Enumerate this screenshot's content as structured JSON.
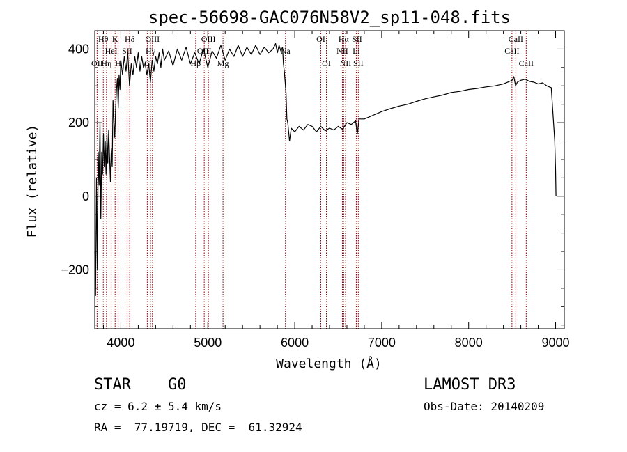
{
  "chart_data": {
    "type": "line",
    "title": "spec-56698-GAC076N58V2_sp11-048.fits",
    "xlabel": "Wavelength (Å)",
    "ylabel": "Flux (relative)",
    "xlim": [
      3700,
      9100
    ],
    "ylim": [
      -360,
      450
    ],
    "x_ticks": [
      4000,
      5000,
      6000,
      7000,
      8000,
      9000
    ],
    "x_tick_labels": [
      "4000",
      "5000",
      "6000",
      "7000",
      "8000",
      "9000"
    ],
    "y_ticks": [
      -200,
      0,
      200,
      400
    ],
    "y_tick_labels": [
      "−200",
      "0",
      "200",
      "400"
    ],
    "grid": false,
    "series": [
      {
        "line_color": "#000000",
        "points": [
          [
            3700,
            -150
          ],
          [
            3710,
            -270
          ],
          [
            3720,
            50
          ],
          [
            3730,
            -200
          ],
          [
            3740,
            120
          ],
          [
            3750,
            30
          ],
          [
            3760,
            200
          ],
          [
            3770,
            -60
          ],
          [
            3780,
            120
          ],
          [
            3790,
            60
          ],
          [
            3800,
            170
          ],
          [
            3810,
            80
          ],
          [
            3820,
            150
          ],
          [
            3830,
            60
          ],
          [
            3840,
            170
          ],
          [
            3850,
            90
          ],
          [
            3860,
            180
          ],
          [
            3870,
            110
          ],
          [
            3880,
            40
          ],
          [
            3890,
            130
          ],
          [
            3900,
            80
          ],
          [
            3910,
            260
          ],
          [
            3920,
            200
          ],
          [
            3930,
            160
          ],
          [
            3940,
            240
          ],
          [
            3950,
            290
          ],
          [
            3960,
            320
          ],
          [
            3970,
            240
          ],
          [
            3980,
            330
          ],
          [
            3990,
            290
          ],
          [
            4000,
            370
          ],
          [
            4020,
            330
          ],
          [
            4040,
            380
          ],
          [
            4060,
            340
          ],
          [
            4080,
            390
          ],
          [
            4100,
            300
          ],
          [
            4120,
            360
          ],
          [
            4140,
            330
          ],
          [
            4160,
            380
          ],
          [
            4180,
            350
          ],
          [
            4200,
            390
          ],
          [
            4220,
            340
          ],
          [
            4240,
            380
          ],
          [
            4260,
            350
          ],
          [
            4280,
            360
          ],
          [
            4300,
            330
          ],
          [
            4320,
            360
          ],
          [
            4340,
            310
          ],
          [
            4360,
            370
          ],
          [
            4380,
            340
          ],
          [
            4400,
            380
          ],
          [
            4420,
            360
          ],
          [
            4440,
            390
          ],
          [
            4460,
            350
          ],
          [
            4480,
            400
          ],
          [
            4500,
            370
          ],
          [
            4550,
            395
          ],
          [
            4600,
            355
          ],
          [
            4650,
            400
          ],
          [
            4700,
            370
          ],
          [
            4750,
            405
          ],
          [
            4800,
            360
          ],
          [
            4850,
            390
          ],
          [
            4900,
            360
          ],
          [
            4950,
            400
          ],
          [
            5000,
            350
          ],
          [
            5050,
            395
          ],
          [
            5100,
            375
          ],
          [
            5150,
            410
          ],
          [
            5200,
            370
          ],
          [
            5250,
            400
          ],
          [
            5300,
            380
          ],
          [
            5350,
            410
          ],
          [
            5400,
            380
          ],
          [
            5450,
            405
          ],
          [
            5500,
            385
          ],
          [
            5550,
            410
          ],
          [
            5600,
            385
          ],
          [
            5650,
            405
          ],
          [
            5700,
            390
          ],
          [
            5750,
            400
          ],
          [
            5780,
            415
          ],
          [
            5800,
            390
          ],
          [
            5820,
            410
          ],
          [
            5840,
            395
          ],
          [
            5860,
            405
          ],
          [
            5870,
            360
          ],
          [
            5880,
            340
          ],
          [
            5900,
            280
          ],
          [
            5910,
            210
          ],
          [
            5920,
            200
          ],
          [
            5940,
            150
          ],
          [
            5960,
            185
          ],
          [
            6000,
            175
          ],
          [
            6050,
            190
          ],
          [
            6100,
            180
          ],
          [
            6150,
            195
          ],
          [
            6200,
            190
          ],
          [
            6250,
            175
          ],
          [
            6300,
            190
          ],
          [
            6350,
            178
          ],
          [
            6400,
            185
          ],
          [
            6450,
            180
          ],
          [
            6500,
            190
          ],
          [
            6550,
            182
          ],
          [
            6600,
            200
          ],
          [
            6650,
            195
          ],
          [
            6700,
            205
          ],
          [
            6720,
            170
          ],
          [
            6740,
            210
          ],
          [
            6800,
            210
          ],
          [
            6850,
            215
          ],
          [
            6900,
            220
          ],
          [
            6950,
            225
          ],
          [
            7000,
            230
          ],
          [
            7100,
            238
          ],
          [
            7200,
            245
          ],
          [
            7300,
            250
          ],
          [
            7400,
            258
          ],
          [
            7500,
            265
          ],
          [
            7600,
            270
          ],
          [
            7700,
            275
          ],
          [
            7800,
            282
          ],
          [
            7900,
            285
          ],
          [
            8000,
            290
          ],
          [
            8100,
            293
          ],
          [
            8200,
            297
          ],
          [
            8300,
            300
          ],
          [
            8400,
            305
          ],
          [
            8500,
            315
          ],
          [
            8520,
            325
          ],
          [
            8540,
            300
          ],
          [
            8560,
            310
          ],
          [
            8600,
            315
          ],
          [
            8650,
            318
          ],
          [
            8700,
            312
          ],
          [
            8750,
            310
          ],
          [
            8800,
            305
          ],
          [
            8850,
            308
          ],
          [
            8900,
            300
          ],
          [
            8950,
            295
          ],
          [
            8990,
            150
          ],
          [
            9000,
            70
          ],
          [
            9005,
            0
          ]
        ]
      }
    ],
    "line_color": "#8b0000",
    "spectral_lines": [
      {
        "label": "Hθ",
        "x": 3798,
        "row": 0
      },
      {
        "label": "OII",
        "x": 3727,
        "row": 2
      },
      {
        "label": "Hη",
        "x": 3835,
        "row": 2
      },
      {
        "label": "HeI",
        "x": 3889,
        "row": 1
      },
      {
        "label": "K",
        "x": 3934,
        "row": 0
      },
      {
        "label": "H",
        "x": 3969,
        "row": 2
      },
      {
        "label": "SII",
        "x": 4072,
        "row": 1
      },
      {
        "label": "Hδ",
        "x": 4102,
        "row": 0
      },
      {
        "label": "OIII",
        "x": 4363,
        "row": 0
      },
      {
        "label": "Hγ",
        "x": 4341,
        "row": 1
      },
      {
        "label": "G",
        "x": 4304,
        "row": 2
      },
      {
        "label": "OIII",
        "x": 5007,
        "row": 0
      },
      {
        "label": "OIII",
        "x": 4959,
        "row": 1
      },
      {
        "label": "Hβ",
        "x": 4861,
        "row": 2
      },
      {
        "label": "Mg",
        "x": 5175,
        "row": 2
      },
      {
        "label": "Na",
        "x": 5893,
        "row": 1
      },
      {
        "label": "OI",
        "x": 6300,
        "row": 0
      },
      {
        "label": "OI",
        "x": 6364,
        "row": 2
      },
      {
        "label": "Hα",
        "x": 6563,
        "row": 0
      },
      {
        "label": "NII",
        "x": 6548,
        "row": 1
      },
      {
        "label": "NII",
        "x": 6584,
        "row": 2
      },
      {
        "label": "SII",
        "x": 6716,
        "row": 0
      },
      {
        "label": "Li",
        "x": 6708,
        "row": 1
      },
      {
        "label": "SII",
        "x": 6731,
        "row": 2
      },
      {
        "label": "CaII",
        "x": 8542,
        "row": 0
      },
      {
        "label": "CaII",
        "x": 8498,
        "row": 1
      },
      {
        "label": "CaII",
        "x": 8662,
        "row": 2
      }
    ]
  },
  "info": {
    "class": "STAR    G0",
    "survey": "LAMOST DR3",
    "cz": "cz = 6.2 ± 5.4 km/s",
    "obs_date": "Obs-Date: 20140209",
    "radec": "RA =  77.19719, DEC =  61.32924"
  }
}
